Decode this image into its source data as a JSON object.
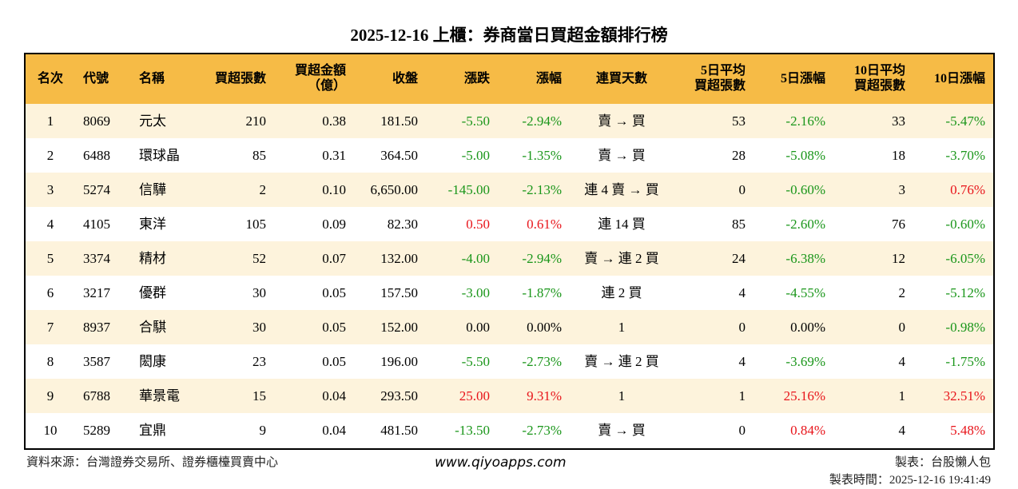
{
  "header": {
    "title": "2025-12-16 上櫃：券商當日買超金額排行榜"
  },
  "table": {
    "columns": [
      [
        "名次"
      ],
      [
        "代號"
      ],
      [
        "名稱"
      ],
      [
        "買超張數"
      ],
      [
        "買超金額",
        "（億）"
      ],
      [
        "收盤"
      ],
      [
        "漲跌"
      ],
      [
        "漲幅"
      ],
      [
        "連買天數"
      ],
      [
        "5日平均",
        "買超張數"
      ],
      [
        "5日漲幅"
      ],
      [
        "10日平均",
        "買超張數"
      ],
      [
        "10日漲幅"
      ]
    ],
    "rows": [
      [
        "1",
        "8069",
        "元太",
        "210",
        "0.38",
        "181.50",
        "-5.50",
        "-2.94%",
        "賣 → 買",
        "53",
        "-2.16%",
        "33",
        "-5.47%"
      ],
      [
        "2",
        "6488",
        "環球晶",
        "85",
        "0.31",
        "364.50",
        "-5.00",
        "-1.35%",
        "賣 → 買",
        "28",
        "-5.08%",
        "18",
        "-3.70%"
      ],
      [
        "3",
        "5274",
        "信驊",
        "2",
        "0.10",
        "6,650.00",
        "-145.00",
        "-2.13%",
        "連 4 賣 → 買",
        "0",
        "-0.60%",
        "3",
        "0.76%"
      ],
      [
        "4",
        "4105",
        "東洋",
        "105",
        "0.09",
        "82.30",
        "0.50",
        "0.61%",
        "連 14 買",
        "85",
        "-2.60%",
        "76",
        "-0.60%"
      ],
      [
        "5",
        "3374",
        "精材",
        "52",
        "0.07",
        "132.00",
        "-4.00",
        "-2.94%",
        "賣 → 連 2 買",
        "24",
        "-6.38%",
        "12",
        "-6.05%"
      ],
      [
        "6",
        "3217",
        "優群",
        "30",
        "0.05",
        "157.50",
        "-3.00",
        "-1.87%",
        "連 2 買",
        "4",
        "-4.55%",
        "2",
        "-5.12%"
      ],
      [
        "7",
        "8937",
        "合騏",
        "30",
        "0.05",
        "152.00",
        "0.00",
        "0.00%",
        "1",
        "0",
        "0.00%",
        "0",
        "-0.98%"
      ],
      [
        "8",
        "3587",
        "閎康",
        "23",
        "0.05",
        "196.00",
        "-5.50",
        "-2.73%",
        "賣 → 連 2 買",
        "4",
        "-3.69%",
        "4",
        "-1.75%"
      ],
      [
        "9",
        "6788",
        "華景電",
        "15",
        "0.04",
        "293.50",
        "25.00",
        "9.31%",
        "1",
        "1",
        "25.16%",
        "1",
        "32.51%"
      ],
      [
        "10",
        "5289",
        "宜鼎",
        "9",
        "0.04",
        "481.50",
        "-13.50",
        "-2.73%",
        "賣 → 買",
        "0",
        "0.84%",
        "4",
        "5.48%"
      ]
    ]
  },
  "footer": {
    "source": "資料來源：台灣證券交易所、證券櫃檯買賣中心",
    "website": "www.qiyoapps.com",
    "author": "製表：台股懶人包",
    "time": "製表時間：2025-12-16 19:41:49"
  }
}
